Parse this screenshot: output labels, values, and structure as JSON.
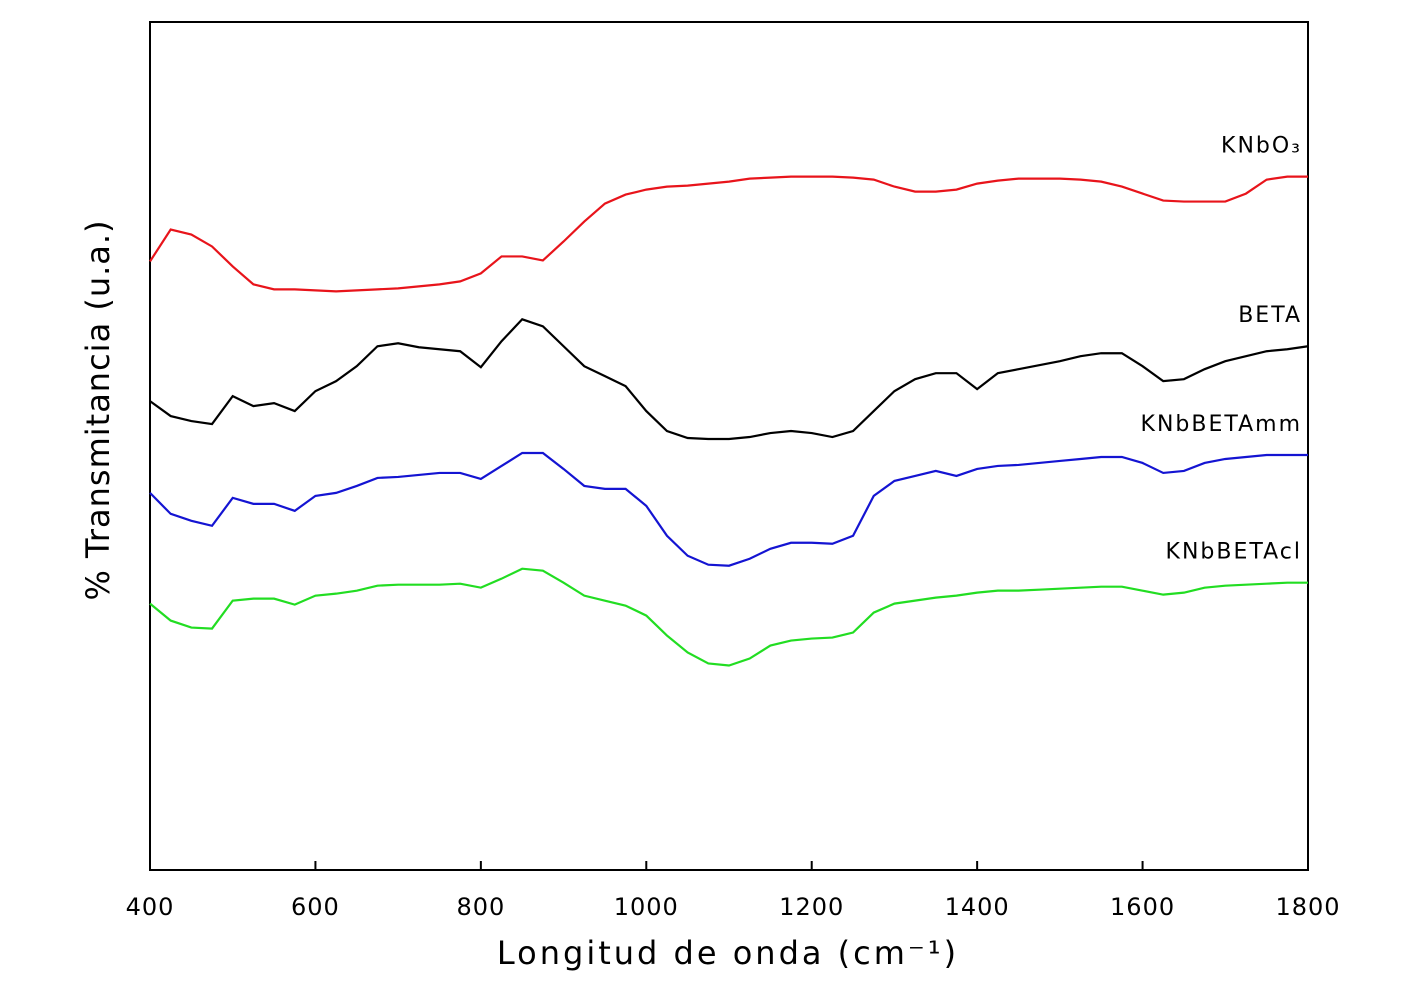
{
  "chart_data": {
    "type": "line",
    "xlabel": "Longitud de onda (cm⁻¹)",
    "ylabel": "% Transmitancia (u.a.)",
    "x": [
      400,
      425,
      450,
      475,
      500,
      525,
      550,
      575,
      600,
      625,
      650,
      675,
      700,
      725,
      750,
      775,
      800,
      825,
      850,
      875,
      900,
      925,
      950,
      975,
      1000,
      1025,
      1050,
      1075,
      1100,
      1125,
      1150,
      1175,
      1200,
      1225,
      1250,
      1275,
      1300,
      1325,
      1350,
      1375,
      1400,
      1425,
      1450,
      1475,
      1500,
      1525,
      1550,
      1575,
      1600,
      1625,
      1650,
      1675,
      1700,
      1725,
      1750,
      1775,
      1800
    ],
    "xlim": [
      400,
      1800
    ],
    "xticks": [
      400,
      600,
      800,
      1000,
      1200,
      1400,
      1600,
      1800
    ],
    "ylim": [
      0,
      850
    ],
    "series": [
      {
        "name": "KNbO₃",
        "color": "#e8141b",
        "values": [
          610,
          642,
          637,
          625,
          605,
          587,
          582,
          582,
          581,
          580,
          581,
          582,
          583,
          585,
          587,
          590,
          598,
          615,
          615,
          611,
          630,
          650,
          668,
          677,
          682,
          685,
          686,
          688,
          690,
          693,
          694,
          695,
          695,
          695,
          694,
          692,
          685,
          680,
          680,
          682,
          688,
          691,
          693,
          693,
          693,
          692,
          690,
          685,
          678,
          671,
          670,
          670,
          670,
          678,
          692,
          695,
          695
        ]
      },
      {
        "name": "BETA",
        "color": "#000000",
        "values": [
          470,
          455,
          450,
          447,
          475,
          465,
          468,
          460,
          480,
          490,
          505,
          525,
          528,
          524,
          522,
          520,
          504,
          530,
          552,
          545,
          525,
          505,
          495,
          485,
          460,
          440,
          433,
          432,
          432,
          434,
          438,
          440,
          438,
          434,
          440,
          460,
          480,
          492,
          498,
          498,
          482,
          498,
          502,
          506,
          510,
          515,
          518,
          518,
          505,
          490,
          492,
          502,
          510,
          515,
          520,
          522,
          525
        ]
      },
      {
        "name": "KNbBETAmm",
        "color": "#1414d2",
        "values": [
          378,
          357,
          350,
          345,
          373,
          367,
          367,
          360,
          375,
          378,
          385,
          393,
          394,
          396,
          398,
          398,
          392,
          405,
          418,
          418,
          402,
          385,
          382,
          382,
          365,
          335,
          315,
          306,
          305,
          312,
          322,
          328,
          328,
          327,
          335,
          375,
          390,
          395,
          400,
          395,
          402,
          405,
          406,
          408,
          410,
          412,
          414,
          414,
          408,
          398,
          400,
          408,
          412,
          414,
          416,
          416,
          416
        ]
      },
      {
        "name": "KNbBETAcl",
        "color": "#22dd22",
        "values": [
          267,
          250,
          243,
          242,
          270,
          272,
          272,
          266,
          275,
          277,
          280,
          285,
          286,
          286,
          286,
          287,
          283,
          292,
          302,
          300,
          288,
          275,
          270,
          265,
          255,
          235,
          218,
          207,
          205,
          212,
          225,
          230,
          232,
          233,
          238,
          258,
          267,
          270,
          273,
          275,
          278,
          280,
          280,
          281,
          282,
          283,
          284,
          284,
          280,
          276,
          278,
          283,
          285,
          286,
          287,
          288,
          288
        ]
      }
    ]
  }
}
